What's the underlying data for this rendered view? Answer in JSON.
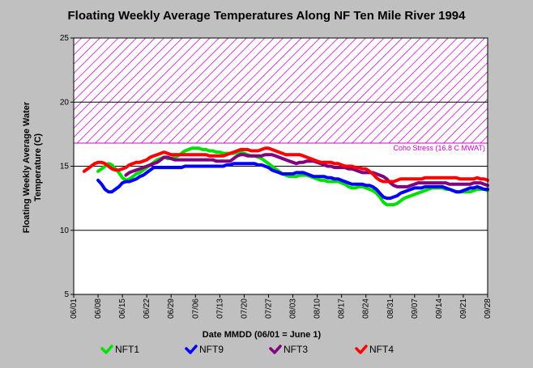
{
  "chart_data": {
    "type": "line",
    "title": "Floating Weekly Average Temperatures Along NF Ten Mile River 1994",
    "xlabel": "Date MMDD (06/01 = June 1)",
    "ylabel_line1": "Floating Weekly Average Water",
    "ylabel_line2": "Temperature (C)",
    "ylim": [
      5,
      25
    ],
    "yticks": [
      5,
      10,
      15,
      20,
      25
    ],
    "xtick_labels": [
      "06/01",
      "06/08",
      "06/15",
      "06/22",
      "06/29",
      "07/06",
      "07/13",
      "07/20",
      "07/27",
      "08/03",
      "08/10",
      "08/17",
      "08/24",
      "08/31",
      "09/07",
      "09/14",
      "09/21",
      "09/28"
    ],
    "x_unit": "days since 06/01 (tick every 7 days)",
    "grid": "horizontal",
    "stress_band": {
      "from": 16.8,
      "to": 25,
      "label": "Coho Stress (16.8 C MWAT)",
      "color": "#cc00cc"
    },
    "series": [
      {
        "name": "NFT1",
        "color": "#00e000",
        "x": [
          7,
          8,
          9,
          10,
          11,
          12,
          13,
          14,
          15,
          16,
          17,
          18,
          19,
          20,
          21,
          22,
          23,
          24,
          25,
          26,
          27,
          28,
          29,
          30,
          31,
          32,
          33,
          34,
          35,
          36,
          37,
          38,
          39,
          40,
          41,
          42,
          43,
          44,
          45,
          46,
          47,
          48,
          49,
          50,
          51,
          52,
          53,
          54,
          55,
          56,
          57,
          58,
          59,
          60,
          61,
          62,
          63,
          64,
          65,
          66,
          67,
          68,
          69,
          70,
          71,
          72,
          73,
          74,
          75,
          76,
          77,
          78,
          79,
          80,
          81,
          82,
          83,
          84,
          85,
          86,
          87,
          88,
          89,
          90,
          91,
          92,
          93,
          94,
          95,
          96,
          97,
          98,
          99,
          100,
          101,
          102,
          103,
          104,
          105,
          106,
          107,
          108,
          109,
          110,
          111,
          112,
          113,
          114,
          115,
          116,
          117,
          118,
          119
        ],
        "y": [
          14.6,
          14.8,
          15.0,
          15.2,
          15.1,
          14.8,
          14.5,
          14.1,
          13.9,
          14.0,
          14.2,
          14.4,
          14.5,
          14.7,
          14.9,
          15.1,
          15.3,
          15.5,
          15.6,
          15.7,
          15.6,
          15.6,
          15.7,
          15.8,
          16.0,
          16.2,
          16.3,
          16.4,
          16.4,
          16.4,
          16.3,
          16.3,
          16.2,
          16.2,
          16.1,
          16.1,
          16.0,
          16.0,
          16.0,
          16.0,
          16.1,
          16.1,
          16.0,
          15.9,
          15.8,
          15.8,
          15.7,
          15.6,
          15.4,
          15.2,
          15.0,
          14.8,
          14.6,
          14.4,
          14.3,
          14.2,
          14.2,
          14.2,
          14.3,
          14.3,
          14.3,
          14.2,
          14.1,
          14.0,
          13.9,
          13.9,
          13.8,
          13.8,
          13.8,
          13.8,
          13.7,
          13.6,
          13.4,
          13.3,
          13.3,
          13.4,
          13.4,
          13.3,
          13.2,
          13.1,
          12.9,
          12.6,
          12.2,
          12.0,
          12.0,
          12.0,
          12.1,
          12.3,
          12.5,
          12.6,
          12.7,
          12.8,
          12.9,
          13.0,
          13.1,
          13.2,
          13.3,
          13.3,
          13.3,
          13.3,
          13.2,
          13.2,
          13.1,
          13.0,
          13.0,
          13.0,
          13.0,
          13.0,
          13.1,
          13.2,
          13.2,
          13.2,
          13.1
        ]
      },
      {
        "name": "NFT9",
        "color": "#0000ff",
        "x": [
          7,
          8,
          9,
          10,
          11,
          12,
          13,
          14,
          15,
          16,
          17,
          18,
          19,
          20,
          21,
          22,
          23,
          24,
          25,
          26,
          27,
          28,
          29,
          30,
          31,
          32,
          33,
          34,
          35,
          36,
          37,
          38,
          39,
          40,
          41,
          42,
          43,
          44,
          45,
          46,
          47,
          48,
          49,
          50,
          51,
          52,
          53,
          54,
          55,
          56,
          57,
          58,
          59,
          60,
          61,
          62,
          63,
          64,
          65,
          66,
          67,
          68,
          69,
          70,
          71,
          72,
          73,
          74,
          75,
          76,
          77,
          78,
          79,
          80,
          81,
          82,
          83,
          84,
          85,
          86,
          87,
          88,
          89,
          90,
          91,
          92,
          93,
          94,
          95,
          96,
          97,
          98,
          99,
          100,
          101,
          102,
          103,
          104,
          105,
          106,
          107,
          108,
          109,
          110,
          111,
          112,
          113,
          114,
          115,
          116,
          117,
          118,
          119
        ],
        "y": [
          13.9,
          13.6,
          13.2,
          13.0,
          13.0,
          13.2,
          13.4,
          13.7,
          13.8,
          13.8,
          13.9,
          14.0,
          14.2,
          14.3,
          14.5,
          14.7,
          14.9,
          14.9,
          14.9,
          14.9,
          14.9,
          14.9,
          14.9,
          14.9,
          14.9,
          15.0,
          15.0,
          15.0,
          15.0,
          15.0,
          15.0,
          15.0,
          15.0,
          15.0,
          15.0,
          15.0,
          15.0,
          15.1,
          15.1,
          15.2,
          15.2,
          15.2,
          15.2,
          15.2,
          15.2,
          15.2,
          15.1,
          15.1,
          15.0,
          14.9,
          14.7,
          14.6,
          14.5,
          14.4,
          14.4,
          14.4,
          14.4,
          14.5,
          14.5,
          14.5,
          14.4,
          14.3,
          14.2,
          14.2,
          14.2,
          14.2,
          14.1,
          14.1,
          14.0,
          14.0,
          13.9,
          13.8,
          13.7,
          13.6,
          13.6,
          13.6,
          13.6,
          13.5,
          13.5,
          13.4,
          13.2,
          12.9,
          12.6,
          12.5,
          12.5,
          12.6,
          12.7,
          12.9,
          13.0,
          13.1,
          13.2,
          13.3,
          13.3,
          13.3,
          13.4,
          13.4,
          13.4,
          13.4,
          13.4,
          13.4,
          13.3,
          13.2,
          13.1,
          13.0,
          13.0,
          13.1,
          13.2,
          13.3,
          13.3,
          13.4,
          13.3,
          13.2,
          13.2
        ]
      },
      {
        "name": "NFT3",
        "color": "#800080",
        "x": [
          15,
          16,
          17,
          18,
          19,
          20,
          21,
          22,
          23,
          24,
          25,
          26,
          27,
          28,
          29,
          30,
          31,
          32,
          33,
          34,
          35,
          36,
          37,
          38,
          39,
          40,
          41,
          42,
          43,
          44,
          45,
          46,
          47,
          48,
          49,
          50,
          51,
          52,
          53,
          54,
          55,
          56,
          57,
          58,
          59,
          60,
          61,
          62,
          63,
          64,
          65,
          66,
          67,
          68,
          69,
          70,
          71,
          72,
          73,
          74,
          75,
          76,
          77,
          78,
          79,
          80,
          81,
          82,
          83,
          84,
          85,
          86,
          87,
          88,
          89,
          90,
          91,
          92,
          93,
          94,
          95,
          96,
          97,
          98,
          99,
          100,
          101,
          102,
          103,
          104,
          105,
          106,
          107,
          108,
          109,
          110,
          111,
          112,
          113,
          114,
          115,
          116,
          117,
          118,
          119
        ],
        "y": [
          14.3,
          14.5,
          14.6,
          14.7,
          14.8,
          14.9,
          15.0,
          15.1,
          15.2,
          15.3,
          15.5,
          15.7,
          15.7,
          15.6,
          15.5,
          15.5,
          15.5,
          15.5,
          15.5,
          15.5,
          15.5,
          15.5,
          15.5,
          15.5,
          15.5,
          15.5,
          15.4,
          15.4,
          15.4,
          15.4,
          15.4,
          15.6,
          15.8,
          15.9,
          15.9,
          15.8,
          15.8,
          15.8,
          15.8,
          15.8,
          15.9,
          15.9,
          15.9,
          15.8,
          15.7,
          15.6,
          15.5,
          15.4,
          15.3,
          15.2,
          15.3,
          15.3,
          15.4,
          15.4,
          15.4,
          15.3,
          15.2,
          15.1,
          15.0,
          15.0,
          14.9,
          14.9,
          14.9,
          14.9,
          14.8,
          14.8,
          14.7,
          14.6,
          14.5,
          14.5,
          14.5,
          14.5,
          14.4,
          14.3,
          14.2,
          14.0,
          13.7,
          13.5,
          13.4,
          13.4,
          13.4,
          13.4,
          13.5,
          13.6,
          13.7,
          13.7,
          13.7,
          13.7,
          13.7,
          13.7,
          13.7,
          13.7,
          13.7,
          13.6,
          13.6,
          13.6,
          13.6,
          13.6,
          13.6,
          13.6,
          13.7,
          13.7,
          13.7,
          13.6,
          13.5
        ]
      },
      {
        "name": "NFT4",
        "color": "#ff0000",
        "x": [
          3,
          4,
          5,
          6,
          7,
          8,
          9,
          10,
          11,
          12,
          13,
          14,
          15,
          16,
          17,
          18,
          19,
          20,
          21,
          22,
          23,
          24,
          25,
          26,
          27,
          28,
          29,
          30,
          31,
          32,
          33,
          34,
          35,
          36,
          37,
          38,
          39,
          40,
          41,
          42,
          43,
          44,
          45,
          46,
          47,
          48,
          49,
          50,
          51,
          52,
          53,
          54,
          55,
          56,
          57,
          58,
          59,
          60,
          61,
          62,
          63,
          64,
          65,
          66,
          67,
          68,
          69,
          70,
          71,
          72,
          73,
          74,
          75,
          76,
          77,
          78,
          79,
          80,
          81,
          82,
          83,
          84,
          85,
          86,
          87,
          88,
          89,
          90,
          91,
          92,
          93,
          94,
          95,
          96,
          97,
          98,
          99,
          100,
          101,
          102,
          103,
          104,
          105,
          106,
          107,
          108,
          109,
          110,
          111,
          112,
          113,
          114,
          115,
          116,
          117,
          118,
          119
        ],
        "y": [
          14.6,
          14.8,
          15.0,
          15.2,
          15.3,
          15.3,
          15.2,
          15.0,
          14.8,
          14.7,
          14.7,
          14.8,
          14.9,
          15.1,
          15.2,
          15.3,
          15.3,
          15.4,
          15.5,
          15.7,
          15.8,
          15.9,
          16.0,
          16.1,
          16.0,
          15.9,
          15.9,
          15.9,
          15.9,
          15.9,
          15.9,
          15.9,
          15.9,
          15.9,
          15.9,
          15.9,
          15.8,
          15.8,
          15.8,
          15.8,
          15.8,
          15.9,
          16.0,
          16.1,
          16.2,
          16.3,
          16.3,
          16.3,
          16.2,
          16.2,
          16.2,
          16.3,
          16.4,
          16.4,
          16.3,
          16.2,
          16.1,
          16.0,
          15.9,
          15.9,
          15.9,
          15.9,
          15.9,
          15.8,
          15.7,
          15.6,
          15.5,
          15.4,
          15.3,
          15.3,
          15.3,
          15.3,
          15.2,
          15.2,
          15.1,
          15.0,
          15.0,
          15.0,
          14.9,
          14.9,
          14.8,
          14.8,
          14.6,
          14.4,
          14.1,
          13.9,
          13.8,
          13.8,
          13.8,
          13.8,
          13.9,
          14.0,
          14.0,
          14.0,
          14.0,
          14.0,
          14.0,
          14.0,
          14.1,
          14.1,
          14.1,
          14.1,
          14.1,
          14.1,
          14.1,
          14.1,
          14.1,
          14.1,
          14.0,
          14.0,
          14.0,
          14.0,
          14.0,
          14.1,
          14.0,
          14.0,
          13.9
        ]
      }
    ]
  }
}
